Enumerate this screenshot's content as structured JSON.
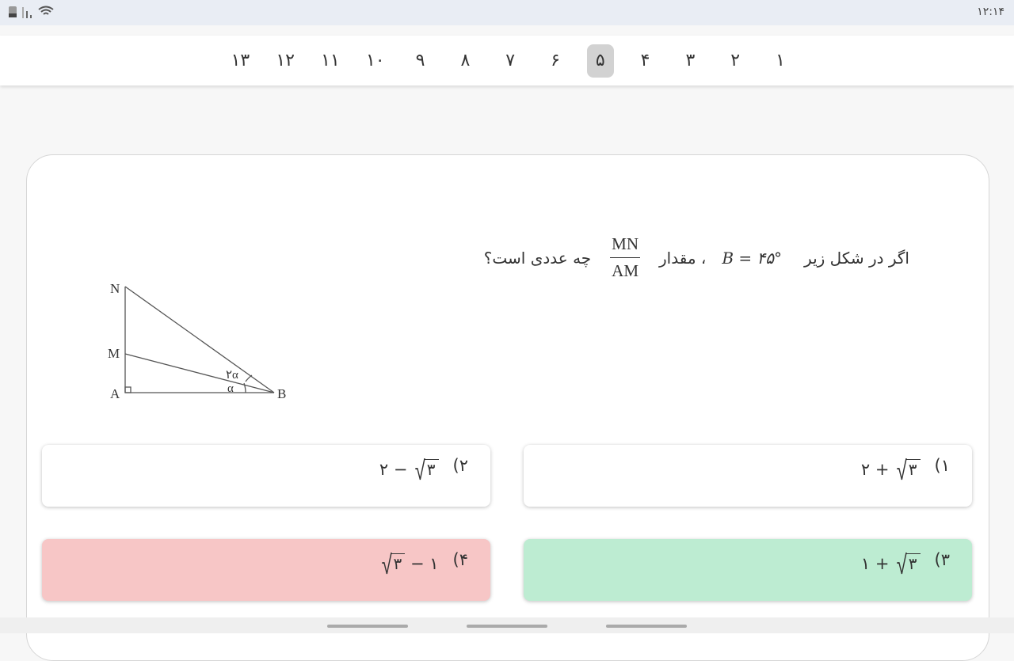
{
  "status_bar": {
    "time": "۱۲:۱۴",
    "icons": [
      "battery-icon",
      "signal-icon",
      "wifi-icon"
    ]
  },
  "nav": {
    "items": [
      "۱",
      "۲",
      "۳",
      "۴",
      "۵",
      "۶",
      "۷",
      "۸",
      "۹",
      "۱۰",
      "۱۱",
      "۱۲",
      "۱۳"
    ],
    "selected": "۵"
  },
  "question": {
    "text_before": "اگر در شکل زیر",
    "angle": "B = ۴۵°",
    "text_mid": "، مقدار",
    "fraction_num": "MN",
    "fraction_den": "AM",
    "text_after": "چه عددی است؟"
  },
  "figure": {
    "labels": {
      "N": "N",
      "M": "M",
      "A": "A",
      "B": "B",
      "angle1": "α",
      "angle2": "۲α"
    }
  },
  "options": [
    {
      "label": "(۱",
      "pre": "۲ + ",
      "radicand": "۳",
      "post": "",
      "state": "normal"
    },
    {
      "label": "(۲",
      "pre": "۲ − ",
      "radicand": "۳",
      "post": "",
      "state": "normal"
    },
    {
      "label": "(۳",
      "pre": "۱ + ",
      "radicand": "۳",
      "post": "",
      "state": "correct"
    },
    {
      "label": "(۴",
      "pre": "",
      "radicand": "۳",
      "post": " − ۱",
      "state": "wrong"
    }
  ],
  "colors": {
    "correct": "#bdecd2",
    "wrong": "#f7c6c6",
    "selected_nav": "#d2d2d2"
  }
}
